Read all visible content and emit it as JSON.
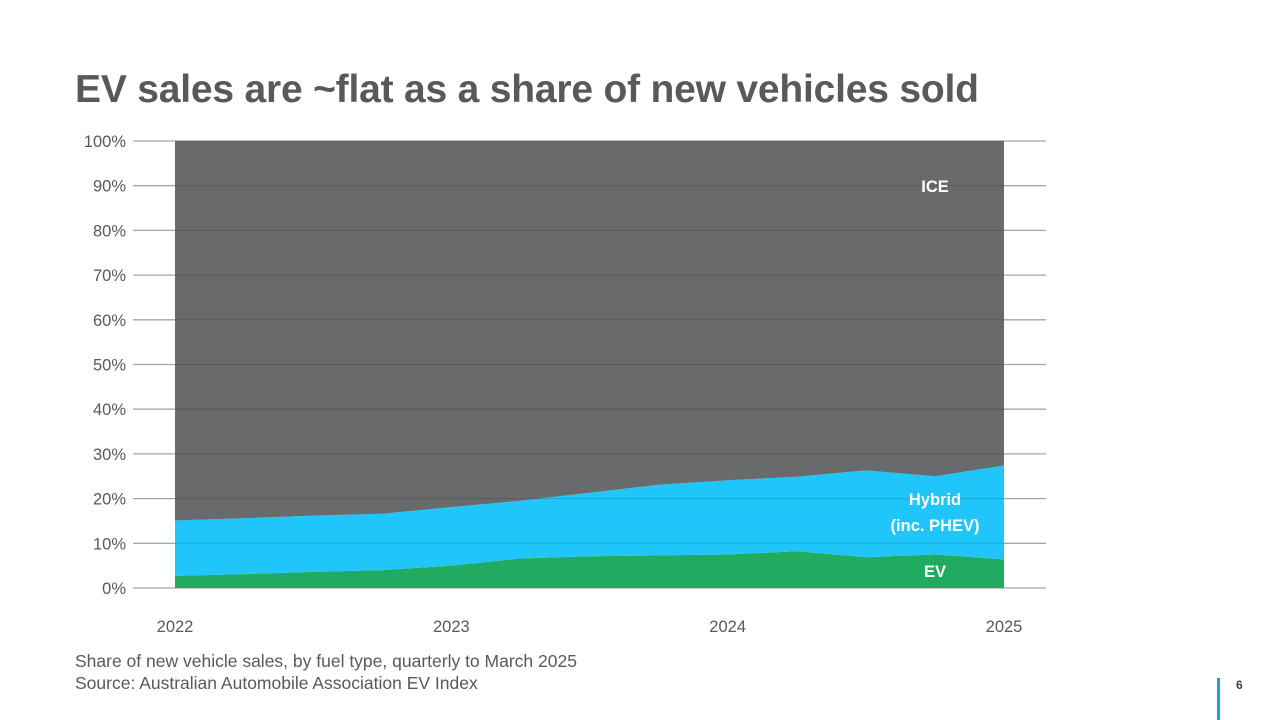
{
  "title": "EV sales are ~flat as a share of new vehicles sold",
  "caption": {
    "line1": "Share of new vehicle sales, by fuel type, quarterly to March 2025",
    "line2": "Source: Australian Automobile Association EV Index"
  },
  "page_number": "6",
  "colors": {
    "ev": "#1aa85b",
    "hybrid": "#19c3fa",
    "ice": "#646567",
    "text": "#595959",
    "accent": "#1aa3d9"
  },
  "chart_data": {
    "type": "area",
    "stacked": true,
    "x": [
      2022.0,
      2022.25,
      2022.5,
      2022.75,
      2023.0,
      2023.25,
      2023.5,
      2023.75,
      2024.0,
      2024.25,
      2024.5,
      2024.75,
      2025.0
    ],
    "series": [
      {
        "name": "EV",
        "values": [
          2.7,
          3.1,
          3.6,
          4.0,
          5.0,
          6.6,
          7.1,
          7.3,
          7.5,
          8.2,
          6.9,
          7.5,
          6.4
        ]
      },
      {
        "name": "Hybrid (inc. PHEV)",
        "values": [
          12.4,
          12.5,
          12.6,
          12.6,
          13.1,
          12.9,
          14.2,
          15.8,
          16.6,
          16.7,
          19.4,
          17.5,
          21.0
        ]
      },
      {
        "name": "ICE",
        "values": [
          84.9,
          84.4,
          83.8,
          83.4,
          81.9,
          80.5,
          78.7,
          76.9,
          75.9,
          75.1,
          73.7,
          75.0,
          72.6
        ]
      }
    ],
    "series_labels": [
      "EV",
      "Hybrid",
      "(inc. PHEV)",
      "ICE"
    ],
    "yticks": [
      "0%",
      "10%",
      "20%",
      "30%",
      "40%",
      "50%",
      "60%",
      "70%",
      "80%",
      "90%",
      "100%"
    ],
    "xticks": [
      "2022",
      "2023",
      "2024",
      "2025"
    ],
    "ylim": [
      0,
      100
    ],
    "xlim": [
      2022,
      2025
    ],
    "grid": "horizontal",
    "title": "",
    "xlabel": "",
    "ylabel": ""
  }
}
